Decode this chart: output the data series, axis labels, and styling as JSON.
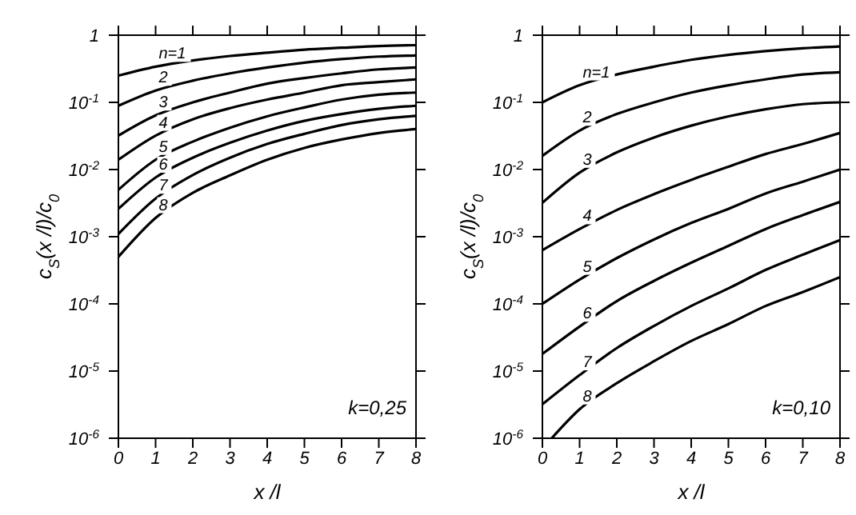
{
  "chart_data": [
    {
      "type": "line",
      "xlabel": "x /l",
      "ylabel": "c$_{S}$(x /l)/c$_{0}$",
      "log": "y",
      "xlim": [
        0,
        8
      ],
      "xticks": [
        0,
        1,
        2,
        3,
        4,
        5,
        6,
        7,
        8
      ],
      "ylim": [
        1e-06,
        1
      ],
      "yticks": [
        {
          "value": 1,
          "label": "1"
        },
        {
          "value": 0.1,
          "label": "10$^{-1}$"
        },
        {
          "value": 0.01,
          "label": "10$^{-2}$"
        },
        {
          "value": 0.001,
          "label": "10$^{-3}$"
        },
        {
          "value": 0.0001,
          "label": "10$^{-4}$"
        },
        {
          "value": 1e-05,
          "label": "10$^{-5}$"
        },
        {
          "value": 1e-06,
          "label": "10$^{-6}$"
        }
      ],
      "grid": false,
      "marker": "none",
      "annotations": [
        "k=0,25"
      ],
      "x": [
        0,
        1,
        2,
        3,
        4,
        5,
        6,
        7,
        8
      ],
      "series": [
        {
          "name": "n=1",
          "color": "#000000",
          "values": [
            0.25,
            0.34,
            0.42,
            0.49,
            0.55,
            0.61,
            0.65,
            0.69,
            0.71
          ]
        },
        {
          "name": "2",
          "color": "#000000",
          "values": [
            0.089,
            0.15,
            0.21,
            0.27,
            0.33,
            0.39,
            0.44,
            0.48,
            0.5
          ]
        },
        {
          "name": "3",
          "color": "#000000",
          "values": [
            0.032,
            0.064,
            0.1,
            0.14,
            0.19,
            0.23,
            0.27,
            0.31,
            0.33
          ]
        },
        {
          "name": "4",
          "color": "#000000",
          "values": [
            0.014,
            0.032,
            0.056,
            0.082,
            0.11,
            0.14,
            0.18,
            0.2,
            0.22
          ]
        },
        {
          "name": "5",
          "color": "#000000",
          "values": [
            0.005,
            0.014,
            0.026,
            0.042,
            0.062,
            0.084,
            0.11,
            0.13,
            0.14
          ]
        },
        {
          "name": "6",
          "color": "#000000",
          "values": [
            0.0026,
            0.0076,
            0.015,
            0.025,
            0.038,
            0.053,
            0.067,
            0.08,
            0.089
          ]
        },
        {
          "name": "7",
          "color": "#000000",
          "values": [
            0.0011,
            0.0037,
            0.0083,
            0.015,
            0.024,
            0.034,
            0.046,
            0.056,
            0.063
          ]
        },
        {
          "name": "8",
          "color": "#000000",
          "values": [
            0.0005,
            0.0019,
            0.0045,
            0.0082,
            0.014,
            0.021,
            0.028,
            0.035,
            0.04
          ]
        }
      ]
    },
    {
      "type": "line",
      "xlabel": "x /l",
      "ylabel": "c$_{S}$(x /l)/c$_{0}$",
      "log": "y",
      "xlim": [
        0,
        8
      ],
      "xticks": [
        0,
        1,
        2,
        3,
        4,
        5,
        6,
        7,
        8
      ],
      "ylim": [
        1e-06,
        1
      ],
      "yticks": [
        {
          "value": 1,
          "label": "1"
        },
        {
          "value": 0.1,
          "label": "10$^{-1}$"
        },
        {
          "value": 0.01,
          "label": "10$^{-2}$"
        },
        {
          "value": 0.001,
          "label": "10$^{-3}$"
        },
        {
          "value": 0.0001,
          "label": "10$^{-4}$"
        },
        {
          "value": 1e-05,
          "label": "10$^{-5}$"
        },
        {
          "value": 1e-06,
          "label": "10$^{-6}$"
        }
      ],
      "grid": false,
      "marker": "none",
      "annotations": [
        "k=0,10"
      ],
      "x": [
        0,
        1,
        2,
        3,
        4,
        5,
        6,
        7,
        8
      ],
      "series": [
        {
          "name": "n=1",
          "color": "#000000",
          "values": [
            0.1,
            0.18,
            0.26,
            0.34,
            0.43,
            0.51,
            0.58,
            0.64,
            0.68
          ]
        },
        {
          "name": "2",
          "color": "#000000",
          "values": [
            0.016,
            0.038,
            0.067,
            0.1,
            0.14,
            0.18,
            0.22,
            0.26,
            0.28
          ]
        },
        {
          "name": "3",
          "color": "#000000",
          "values": [
            0.0032,
            0.009,
            0.018,
            0.03,
            0.045,
            0.062,
            0.079,
            0.094,
            0.1
          ]
        },
        {
          "name": "4",
          "color": "#000000",
          "values": [
            0.00063,
            0.0013,
            0.0025,
            0.0043,
            0.007,
            0.011,
            0.017,
            0.024,
            0.035
          ]
        },
        {
          "name": "5",
          "color": "#000000",
          "values": [
            0.0001,
            0.00023,
            0.00048,
            0.00091,
            0.0016,
            0.0026,
            0.0044,
            0.0066,
            0.01
          ]
        },
        {
          "name": "6",
          "color": "#000000",
          "values": [
            1.8e-05,
            4.6e-05,
            0.00011,
            0.00022,
            0.00041,
            0.00073,
            0.0013,
            0.0021,
            0.0033
          ]
        },
        {
          "name": "7",
          "color": "#000000",
          "values": [
            3.2e-06,
            8.7e-06,
            2.2e-05,
            4.7e-05,
            9.3e-05,
            0.00017,
            0.00032,
            0.00054,
            0.00089
          ]
        },
        {
          "name": "8",
          "color": "#000000",
          "x": [
            0.25,
            1,
            2,
            3,
            4,
            5,
            6,
            7,
            8
          ],
          "values": [
            1e-06,
            2.7e-06,
            6.6e-06,
            1.4e-05,
            2.8e-05,
            5e-05,
            9.3e-05,
            0.00015,
            0.00025
          ]
        }
      ]
    }
  ]
}
